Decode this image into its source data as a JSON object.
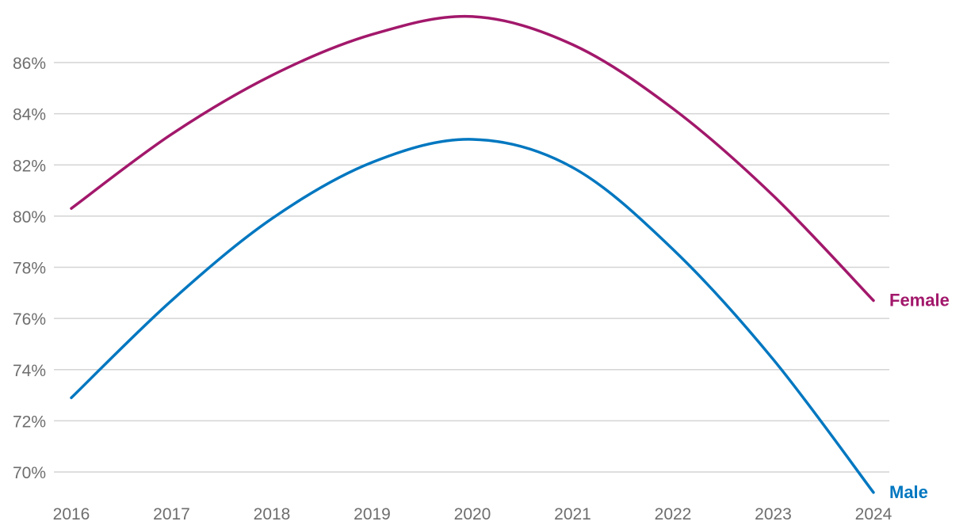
{
  "chart_data": {
    "type": "line",
    "title": "",
    "xlabel": "",
    "ylabel": "",
    "x": [
      2016,
      2017,
      2018,
      2019,
      2020,
      2021,
      2022,
      2023,
      2024
    ],
    "x_tick_labels": [
      "2016",
      "2017",
      "2018",
      "2019",
      "2020",
      "2021",
      "2022",
      "2023",
      "2024"
    ],
    "y_ticks": [
      70,
      72,
      74,
      76,
      78,
      80,
      82,
      84,
      86
    ],
    "y_tick_labels": [
      "70%",
      "72%",
      "74%",
      "76%",
      "78%",
      "80%",
      "82%",
      "84%",
      "86%"
    ],
    "ylim": [
      69,
      88
    ],
    "grid": "horizontal",
    "legend": "direct labels at line ends",
    "series": [
      {
        "name": "Female",
        "color": "#a2186b",
        "values": [
          80.3,
          83.2,
          85.5,
          87.1,
          87.8,
          86.7,
          84.2,
          80.8,
          76.7
        ]
      },
      {
        "name": "Male",
        "color": "#0077c0",
        "values": [
          72.9,
          76.7,
          79.9,
          82.1,
          83.0,
          81.9,
          78.7,
          74.4,
          69.2
        ]
      }
    ]
  }
}
